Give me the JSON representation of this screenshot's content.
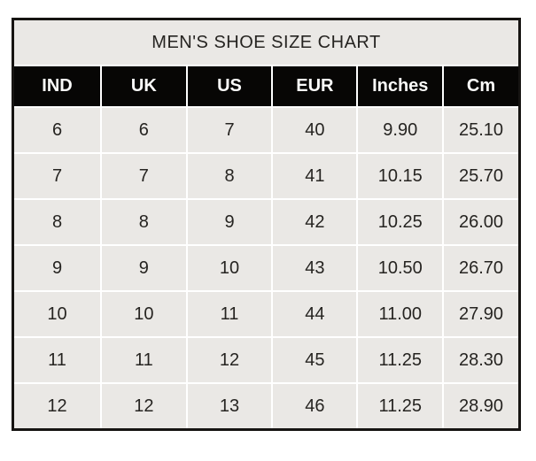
{
  "chart_data": {
    "type": "table",
    "title": "MEN'S SHOE SIZE CHART",
    "columns": [
      "IND",
      "UK",
      "US",
      "EUR",
      "Inches",
      "Cm"
    ],
    "rows": [
      [
        "6",
        "6",
        "7",
        "40",
        "9.90",
        "25.10"
      ],
      [
        "7",
        "7",
        "8",
        "41",
        "10.15",
        "25.70"
      ],
      [
        "8",
        "8",
        "9",
        "42",
        "10.25",
        "26.00"
      ],
      [
        "9",
        "9",
        "10",
        "43",
        "10.50",
        "26.70"
      ],
      [
        "10",
        "10",
        "11",
        "44",
        "11.00",
        "27.90"
      ],
      [
        "11",
        "11",
        "12",
        "45",
        "11.25",
        "28.30"
      ],
      [
        "12",
        "12",
        "13",
        "46",
        "11.25",
        "28.90"
      ]
    ],
    "layout": {
      "title_position": "top",
      "grid": "white gridlines between cells",
      "outer_border": "black"
    }
  },
  "colors": {
    "title_background": "#f0efec",
    "header_background": "#070605",
    "header_text": "#fbfbfa",
    "row_background": "#eae8e5",
    "cell_text": "#262421",
    "gridline": "#ffffff",
    "outer_border": "#161412",
    "page_background": "#ffffff"
  }
}
